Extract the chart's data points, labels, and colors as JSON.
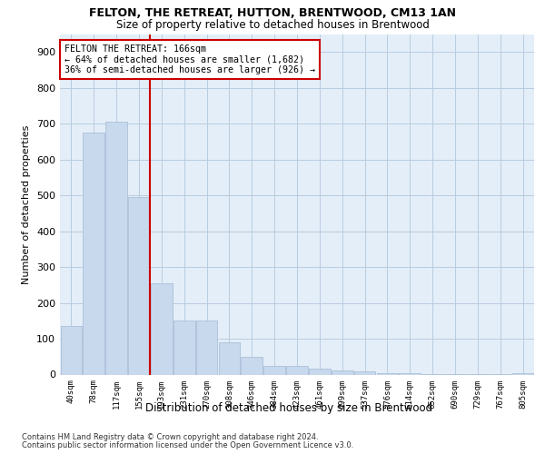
{
  "title": "FELTON, THE RETREAT, HUTTON, BRENTWOOD, CM13 1AN",
  "subtitle": "Size of property relative to detached houses in Brentwood",
  "xlabel": "Distribution of detached houses by size in Brentwood",
  "ylabel": "Number of detached properties",
  "bar_color": "#c8d8ed",
  "bar_edge_color": "#aac0d8",
  "background_color": "#ffffff",
  "plot_bg_color": "#e4eef8",
  "grid_color": "#b8cce0",
  "bins": [
    "40sqm",
    "78sqm",
    "117sqm",
    "155sqm",
    "193sqm",
    "231sqm",
    "270sqm",
    "308sqm",
    "346sqm",
    "384sqm",
    "423sqm",
    "461sqm",
    "499sqm",
    "537sqm",
    "576sqm",
    "614sqm",
    "652sqm",
    "690sqm",
    "729sqm",
    "767sqm",
    "805sqm"
  ],
  "values": [
    135,
    675,
    705,
    495,
    255,
    150,
    150,
    90,
    50,
    25,
    23,
    17,
    12,
    10,
    5,
    3,
    2,
    2,
    1,
    1,
    3
  ],
  "property_bin_index": 3,
  "vline_color": "#cc0000",
  "annotation_text": "FELTON THE RETREAT: 166sqm\n← 64% of detached houses are smaller (1,682)\n36% of semi-detached houses are larger (926) →",
  "annotation_box_color": "#ffffff",
  "annotation_box_edge_color": "#cc0000",
  "footnote1": "Contains HM Land Registry data © Crown copyright and database right 2024.",
  "footnote2": "Contains public sector information licensed under the Open Government Licence v3.0.",
  "ylim": [
    0,
    950
  ],
  "yticks": [
    0,
    100,
    200,
    300,
    400,
    500,
    600,
    700,
    800,
    900
  ]
}
